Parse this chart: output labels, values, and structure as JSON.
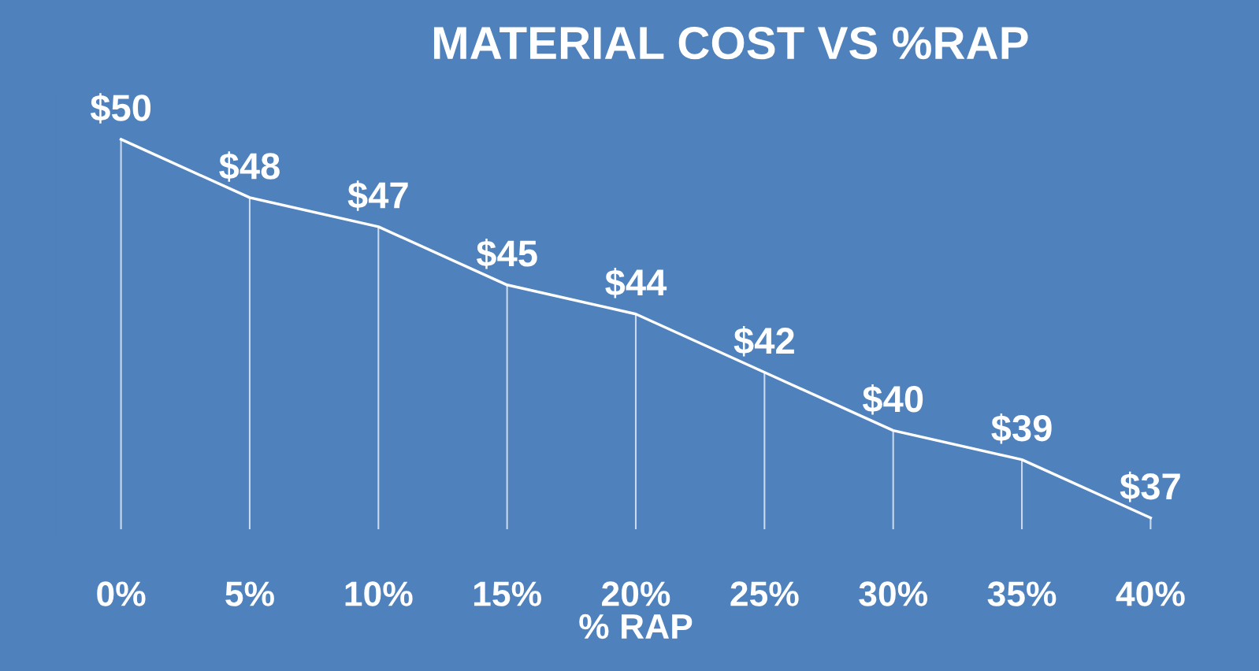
{
  "chart_data": {
    "type": "line",
    "title": "MATERIAL COST VS %RAP",
    "xlabel": "% RAP",
    "categories": [
      "0%",
      "5%",
      "10%",
      "15%",
      "20%",
      "25%",
      "30%",
      "35%",
      "40%"
    ],
    "series": [
      {
        "color": "#ffffff",
        "values": [
          50,
          48,
          47,
          45,
          44,
          42,
          40,
          39,
          37
        ],
        "value_labels": [
          "$50",
          "$48",
          "$47",
          "$45",
          "$44",
          "$42",
          "$40",
          "$39",
          "$37"
        ]
      }
    ],
    "marker": "none",
    "line_style": "solid",
    "grid": "x",
    "legend": false
  }
}
